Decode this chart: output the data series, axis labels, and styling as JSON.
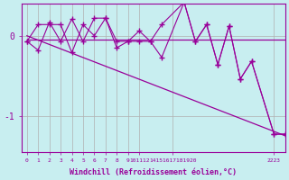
{
  "xlabel": "Windchill (Refroidissement éolien,°C)",
  "background_color": "#c8eef0",
  "grid_color": "#b0b0b0",
  "line_color": "#990099",
  "xtick_labels": [
    "0",
    "1",
    "2",
    "3",
    "4",
    "5",
    "6",
    "7",
    "8",
    "9",
    "101112",
    "",
    "14151617181920",
    "",
    "",
    "",
    "",
    "",
    "",
    "",
    "2223"
  ],
  "xtick_positions": [
    0,
    1,
    2,
    3,
    4,
    5,
    6,
    7,
    8,
    9,
    10,
    11,
    14,
    15,
    16,
    17,
    18,
    19,
    20,
    21,
    22
  ],
  "ylim": [
    -1.45,
    0.4
  ],
  "xlim": [
    -0.5,
    23.0
  ],
  "ytick_labels": [
    "0",
    "-1"
  ],
  "ytick_positions": [
    0.0,
    -1.0
  ],
  "line1_x": [
    0,
    23
  ],
  "line1_y": [
    -0.05,
    -0.05
  ],
  "line2_x": [
    0,
    23
  ],
  "line2_y": [
    0.0,
    -1.25
  ],
  "series1_x": [
    0,
    1,
    2,
    3,
    4,
    5,
    6,
    7,
    8,
    9,
    10,
    11,
    12,
    14,
    15,
    16,
    17,
    18,
    19,
    20,
    22,
    23
  ],
  "series1_y": [
    -0.07,
    -0.18,
    0.17,
    -0.07,
    0.21,
    -0.07,
    0.22,
    0.22,
    -0.15,
    -0.07,
    0.06,
    -0.07,
    -0.27,
    0.42,
    -0.07,
    0.14,
    -0.36,
    0.12,
    -0.54,
    -0.32,
    -1.23,
    -1.23
  ],
  "series2_x": [
    0,
    1,
    2,
    3,
    4,
    5,
    6,
    7,
    8,
    9,
    10,
    11,
    12,
    14,
    15,
    16,
    17,
    18,
    19,
    20,
    22,
    23
  ],
  "series2_y": [
    -0.07,
    0.14,
    0.14,
    0.14,
    -0.21,
    0.14,
    0.0,
    0.22,
    -0.07,
    -0.07,
    -0.07,
    -0.07,
    0.14,
    0.42,
    -0.07,
    0.14,
    -0.36,
    0.12,
    -0.54,
    -0.32,
    -1.23,
    -1.23
  ]
}
